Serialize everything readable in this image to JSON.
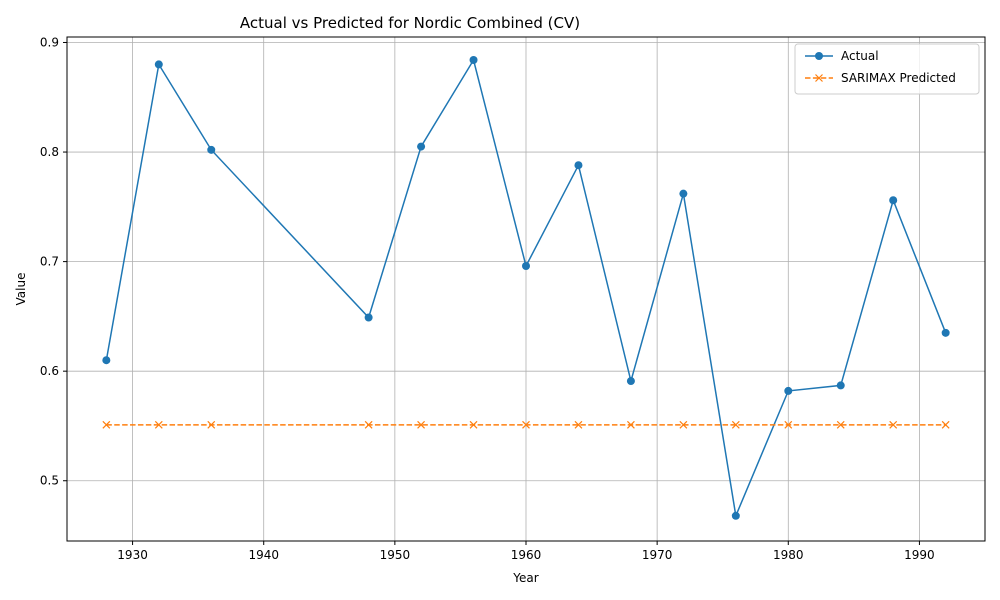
{
  "chart_data": {
    "type": "line",
    "title": "Actual vs Predicted for Nordic Combined (CV)",
    "xlabel": "Year",
    "ylabel": "Value",
    "x": [
      1928,
      1932,
      1936,
      1948,
      1952,
      1956,
      1960,
      1964,
      1968,
      1972,
      1976,
      1980,
      1984,
      1988,
      1992
    ],
    "xlim": [
      1925,
      1995
    ],
    "ylim": [
      0.445,
      0.905
    ],
    "xticks": [
      "1930",
      "1940",
      "1950",
      "1960",
      "1970",
      "1980",
      "1990"
    ],
    "yticks": [
      "0.5",
      "0.6",
      "0.7",
      "0.8",
      "0.9"
    ],
    "grid": true,
    "legend_position": "top-right",
    "series": [
      {
        "name": "Actual",
        "values": [
          0.61,
          0.88,
          0.802,
          0.649,
          0.805,
          0.884,
          0.696,
          0.788,
          0.591,
          0.762,
          0.468,
          0.582,
          0.587,
          0.756,
          0.635
        ],
        "color": "#1f77b4",
        "marker": "circle",
        "line_style": "solid"
      },
      {
        "name": "SARIMAX Predicted",
        "values": [
          0.551,
          0.551,
          0.551,
          0.551,
          0.551,
          0.551,
          0.551,
          0.551,
          0.551,
          0.551,
          0.551,
          0.551,
          0.551,
          0.551,
          0.551
        ],
        "color": "#ff7f0e",
        "marker": "x",
        "line_style": "dashed"
      }
    ]
  }
}
